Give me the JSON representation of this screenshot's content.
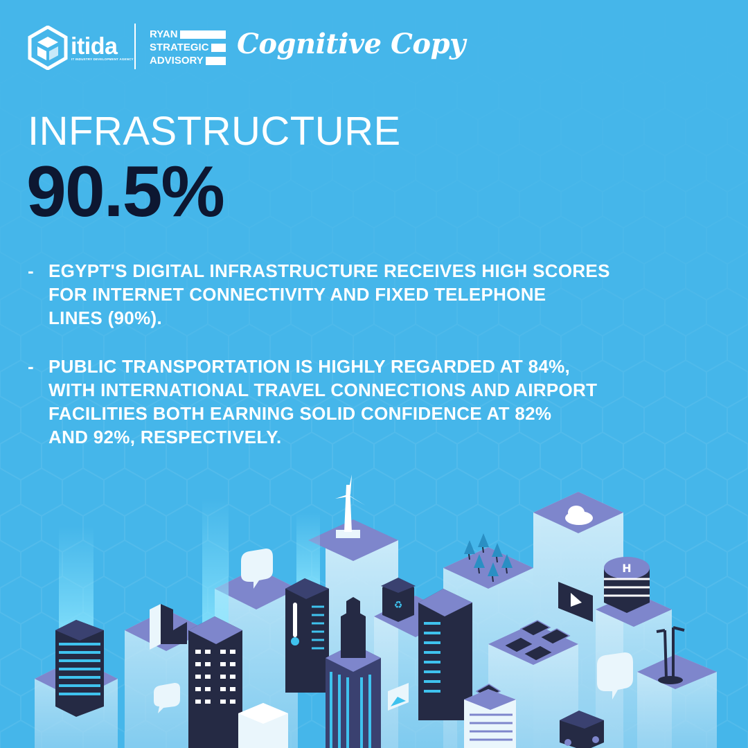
{
  "header": {
    "itida": {
      "name": "itida",
      "tagline": "IT INDUSTRY DEVELOPMENT AGENCY"
    },
    "ryan": {
      "lines": [
        "RYAN",
        "STRATEGIC",
        "ADVISORY"
      ]
    },
    "cognitive": "Cognitive Copy"
  },
  "section_title": "INFRASTRUCTURE",
  "stat_value": "90.5%",
  "bullets": [
    {
      "dash": "-",
      "text": "EGYPT'S DIGITAL INFRASTRUCTURE RECEIVES HIGH SCORES\nFOR INTERNET CONNECTIVITY AND FIXED TELEPHONE\nLINES (90%)."
    },
    {
      "dash": "-",
      "text": "PUBLIC TRANSPORTATION IS HIGHLY REGARDED AT 84%,\nWITH INTERNATIONAL TRAVEL CONNECTIONS AND AIRPORT\nFACILITIES BOTH EARNING SOLID CONFIDENCE AT 82%\nAND 92%, RESPECTIVELY."
    }
  ],
  "colors": {
    "background": "#45b6ea",
    "stat": "#0d1731",
    "text": "#ffffff",
    "building_top": "#7e86cc",
    "building_dark": "#252a44",
    "building_light": "#dff2fb",
    "accent_cyan": "#3fc2ee"
  },
  "illustration": {
    "icons": [
      "wind-turbine-icon",
      "cloud-icon",
      "chat-bubble-icon",
      "factory-icon",
      "thermometer-icon",
      "recycle-bin-icon",
      "tree-icon",
      "helipad-icon",
      "play-screen-icon",
      "solar-panel-icon",
      "street-lamp-icon",
      "truck-icon",
      "image-card-icon"
    ]
  }
}
